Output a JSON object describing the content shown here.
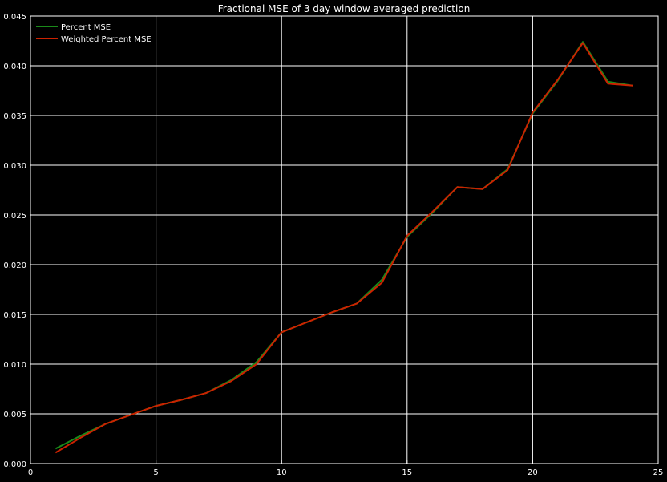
{
  "chart_data": {
    "type": "line",
    "title": "Fractional MSE of 3 day window averaged prediction",
    "xlabel": "",
    "ylabel": "",
    "xlim": [
      0,
      25
    ],
    "ylim": [
      0,
      0.045
    ],
    "xticks": [
      0,
      5,
      10,
      15,
      20,
      25
    ],
    "xtick_labels": [
      "0",
      "5",
      "10",
      "15",
      "20",
      "25"
    ],
    "yticks": [
      0,
      0.005,
      0.01,
      0.015,
      0.02,
      0.025,
      0.03,
      0.035,
      0.04,
      0.045
    ],
    "ytick_labels": [
      "0.000",
      "0.005",
      "0.010",
      "0.015",
      "0.020",
      "0.025",
      "0.030",
      "0.035",
      "0.040",
      "0.045"
    ],
    "grid": true,
    "legend_position": "top-left",
    "background": "#000000",
    "x": [
      1,
      2,
      3,
      4,
      5,
      6,
      7,
      8,
      9,
      10,
      11,
      12,
      13,
      14,
      15,
      16,
      17,
      18,
      19,
      20,
      21,
      22,
      23,
      24
    ],
    "series": [
      {
        "name": "Percent MSE",
        "color": "#1a8a1a",
        "values": [
          0.0015,
          0.0028,
          0.004,
          0.0049,
          0.0058,
          0.0064,
          0.0071,
          0.0084,
          0.0102,
          0.0132,
          0.0142,
          0.0152,
          0.0161,
          0.0185,
          0.0228,
          0.0252,
          0.0278,
          0.0276,
          0.0296,
          0.0352,
          0.0385,
          0.0424,
          0.0384,
          0.038
        ]
      },
      {
        "name": "Weighted Percent MSE",
        "color": "#cc2200",
        "values": [
          0.0011,
          0.0026,
          0.004,
          0.0049,
          0.0058,
          0.0064,
          0.0071,
          0.0083,
          0.01,
          0.0132,
          0.0142,
          0.0152,
          0.0161,
          0.0182,
          0.0229,
          0.0253,
          0.0278,
          0.0276,
          0.0295,
          0.0353,
          0.0386,
          0.0423,
          0.0382,
          0.038
        ]
      }
    ]
  }
}
